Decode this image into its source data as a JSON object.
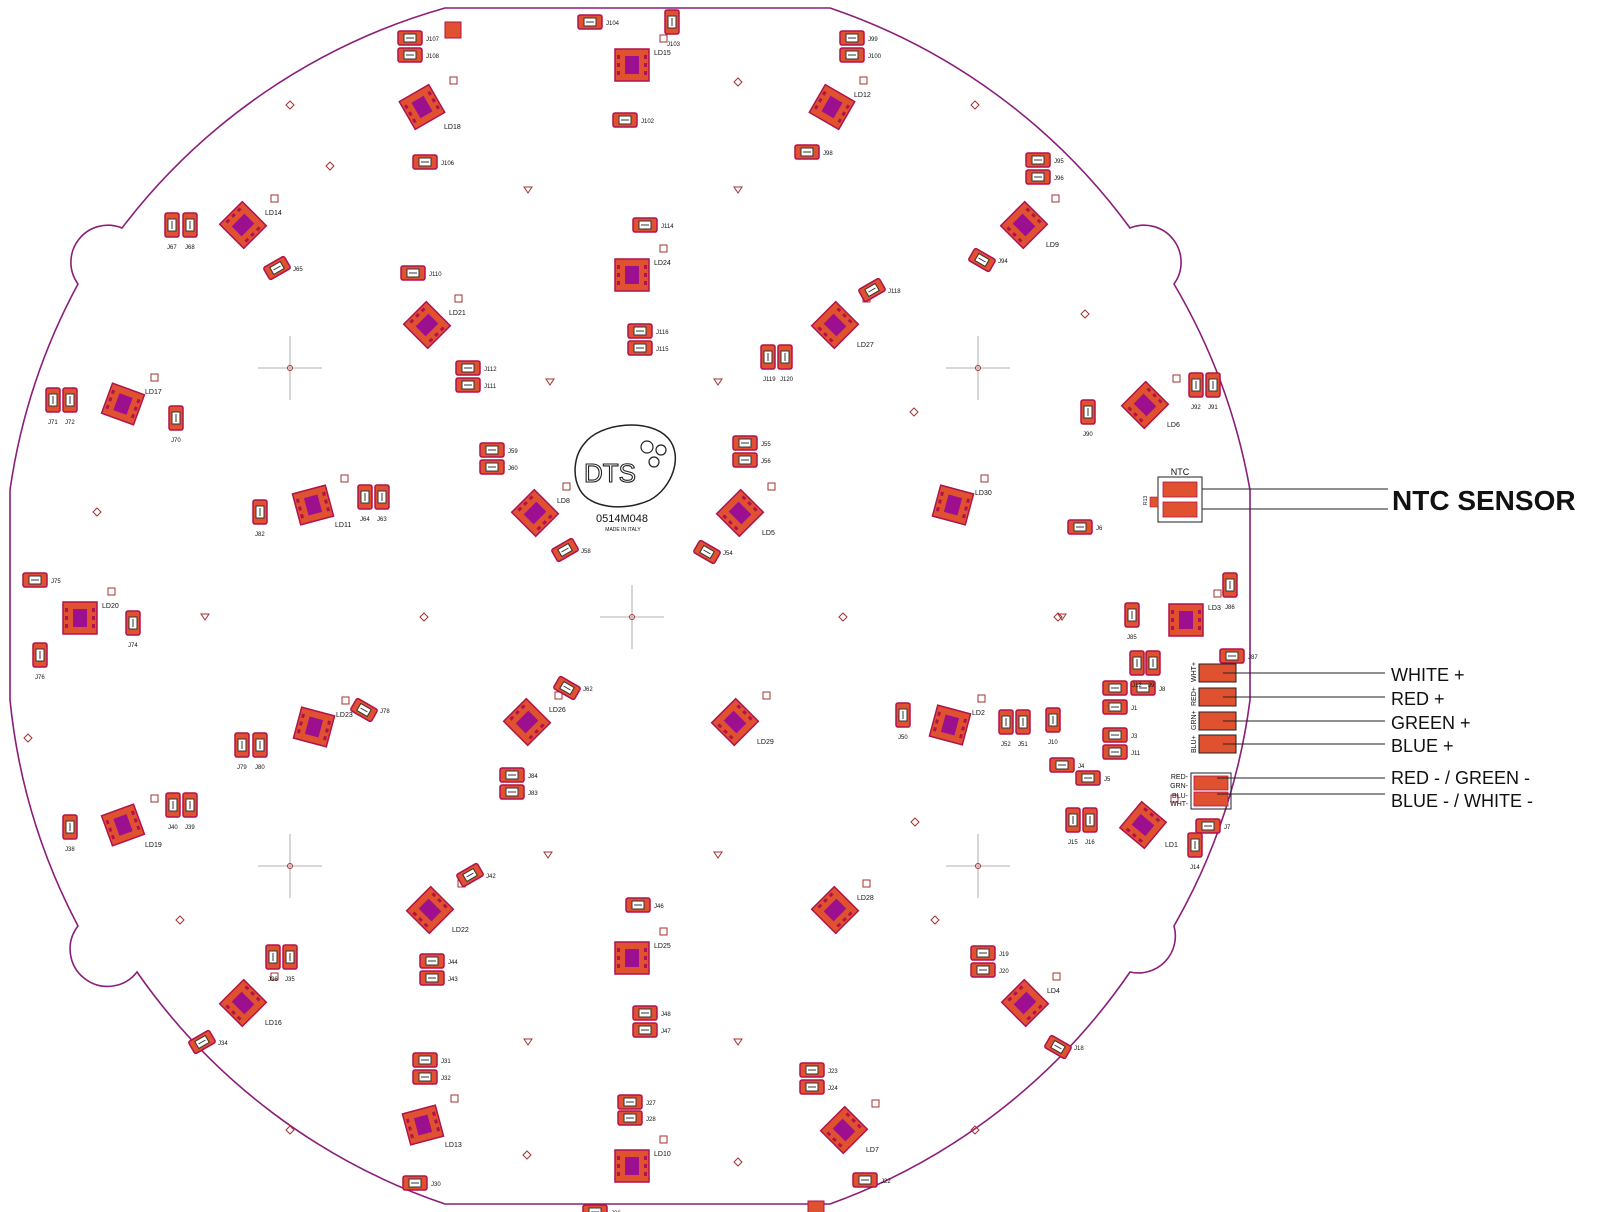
{
  "board": {
    "logo_text": "DTS",
    "part_number": "0514M048",
    "origin_text": "MADE IN ITALY",
    "outline_color": "#8b1e7a",
    "pad_color": "#e0522f",
    "pad_border_color": "#b0124e",
    "led_core_color": "#9c1090",
    "marker_color": "#a53030"
  },
  "connector": {
    "ntc_label": "NTC",
    "ntc_ref": "R13",
    "pin_labels_top": [
      "WHT+",
      "RED+",
      "GRN+",
      "BLU+"
    ],
    "pin_labels_bottom": [
      "RED-",
      "GRN-",
      "BLU-",
      "WHT-"
    ]
  },
  "annotations": {
    "ntc_sensor": "NTC SENSOR",
    "white_plus": "WHITE +",
    "red_plus": "RED +",
    "green_plus": "GREEN +",
    "blue_plus": "BLUE +",
    "red_minus_green_minus": "RED - / GREEN -",
    "blue_minus_white_minus": "BLUE - / WHITE -"
  },
  "leds": [
    {
      "ref": "LD1"
    },
    {
      "ref": "LD2"
    },
    {
      "ref": "LD3"
    },
    {
      "ref": "LD4"
    },
    {
      "ref": "LD5"
    },
    {
      "ref": "LD6"
    },
    {
      "ref": "LD7"
    },
    {
      "ref": "LD8"
    },
    {
      "ref": "LD9"
    },
    {
      "ref": "LD10"
    },
    {
      "ref": "LD11"
    },
    {
      "ref": "LD12"
    },
    {
      "ref": "LD13"
    },
    {
      "ref": "LD14"
    },
    {
      "ref": "LD15"
    },
    {
      "ref": "LD16"
    },
    {
      "ref": "LD17"
    },
    {
      "ref": "LD18"
    },
    {
      "ref": "LD19"
    },
    {
      "ref": "LD20"
    },
    {
      "ref": "LD21"
    },
    {
      "ref": "LD22"
    },
    {
      "ref": "LD23"
    },
    {
      "ref": "LD24"
    },
    {
      "ref": "LD25"
    },
    {
      "ref": "LD26"
    },
    {
      "ref": "LD27"
    },
    {
      "ref": "LD28"
    },
    {
      "ref": "LD29"
    },
    {
      "ref": "LD30"
    }
  ],
  "jumpers": [
    "J1",
    "J2",
    "J3",
    "J4",
    "J5",
    "J6",
    "J7",
    "J8",
    "J9",
    "J10",
    "J11",
    "J12",
    "J14",
    "J15",
    "J16",
    "J18",
    "J19",
    "J20",
    "J22",
    "J23",
    "J24",
    "J26",
    "J27",
    "J28",
    "J30",
    "J31",
    "J32",
    "J34",
    "J35",
    "J36",
    "J38",
    "J39",
    "J40",
    "J42",
    "J43",
    "J44",
    "J46",
    "J47",
    "J48",
    "J50",
    "J51",
    "J52",
    "J54",
    "J55",
    "J56",
    "J58",
    "J59",
    "J60",
    "J62",
    "J63",
    "J64",
    "J65",
    "J67",
    "J68",
    "J70",
    "J71",
    "J72",
    "J74",
    "J75",
    "J76",
    "J78",
    "J79",
    "J80",
    "J82",
    "J83",
    "J84",
    "J85",
    "J86",
    "J87",
    "J90",
    "J91",
    "J92",
    "J94",
    "J95",
    "J96",
    "J98",
    "J99",
    "J100",
    "J102",
    "J103",
    "J104",
    "J106",
    "J107",
    "J108",
    "J110",
    "J111",
    "J112",
    "J114",
    "J115",
    "J116",
    "J118",
    "J119",
    "J120"
  ]
}
